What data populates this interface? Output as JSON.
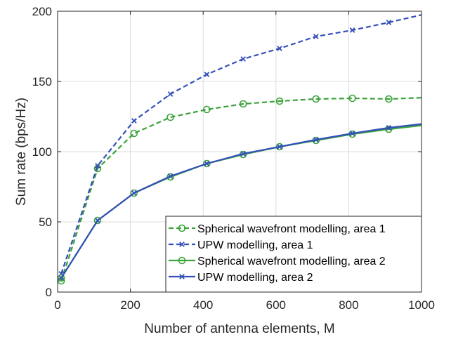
{
  "chart_data": {
    "type": "line",
    "title": "",
    "xlabel": "Number of antenna elements, M",
    "ylabel": "Sum rate (bps/Hz)",
    "xlim": [
      0,
      1000
    ],
    "ylim": [
      0,
      200
    ],
    "xticks": [
      0,
      200,
      400,
      600,
      800,
      1000
    ],
    "yticks": [
      0,
      50,
      100,
      150,
      200
    ],
    "grid": true,
    "legend_position": "bottom-right",
    "x": [
      10,
      110,
      210,
      310,
      410,
      510,
      610,
      710,
      810,
      910,
      1010
    ],
    "series": [
      {
        "name": "Spherical wavefront modelling, area 1",
        "color": "#3aa33a",
        "line_style": "dashed",
        "marker": "circle",
        "values": [
          8,
          88,
          113,
          124.5,
          130,
          134,
          136,
          137.5,
          138,
          137.5,
          138.5
        ]
      },
      {
        "name": "UPW modelling, area 1",
        "color": "#3450b8",
        "line_style": "dashed",
        "marker": "x",
        "values": [
          13,
          90,
          122,
          141,
          155,
          166,
          173.5,
          182,
          186.5,
          192,
          198
        ]
      },
      {
        "name": "Spherical wavefront modelling, area 2",
        "color": "#3aa33a",
        "line_style": "solid",
        "marker": "circle",
        "values": [
          10,
          51,
          70.5,
          82,
          91.5,
          98,
          103.5,
          108,
          112.5,
          116,
          119
        ]
      },
      {
        "name": "UPW modelling, area 2",
        "color": "#3450b8",
        "line_style": "solid",
        "marker": "x",
        "values": [
          10,
          51,
          70.5,
          82.5,
          91.5,
          98.5,
          103.5,
          108.5,
          113,
          117,
          120
        ]
      }
    ]
  }
}
